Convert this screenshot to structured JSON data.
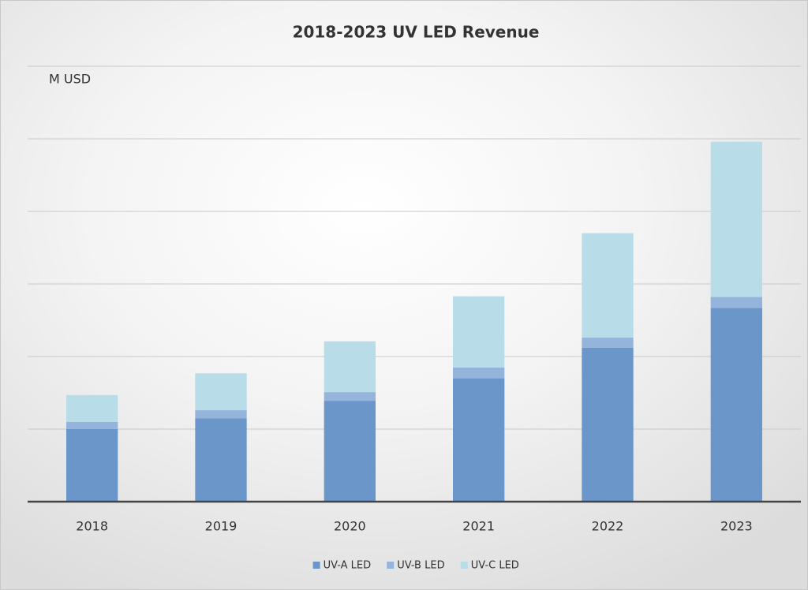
{
  "chart_data": {
    "type": "stacked_bar",
    "title": "2018-2023 UV LED Revenue",
    "y_label": "M USD",
    "categories": [
      "2018",
      "2019",
      "2020",
      "2021",
      "2022",
      "2023"
    ],
    "series": [
      {
        "name": "UV-A LED",
        "color": "#6a96c9",
        "values": [
          1.0,
          1.15,
          1.39,
          1.7,
          2.12,
          2.67
        ]
      },
      {
        "name": "UV-B LED",
        "color": "#94b4dc",
        "values": [
          0.1,
          0.11,
          0.12,
          0.15,
          0.14,
          0.15
        ]
      },
      {
        "name": "UV-C LED",
        "color": "#b8dde9",
        "values": [
          0.37,
          0.51,
          0.7,
          0.98,
          1.44,
          2.14
        ]
      }
    ],
    "ylim": [
      0,
      6
    ],
    "yticks": [
      0,
      1,
      2,
      3,
      4,
      5,
      6
    ],
    "grid": true,
    "legend": "bottom"
  }
}
